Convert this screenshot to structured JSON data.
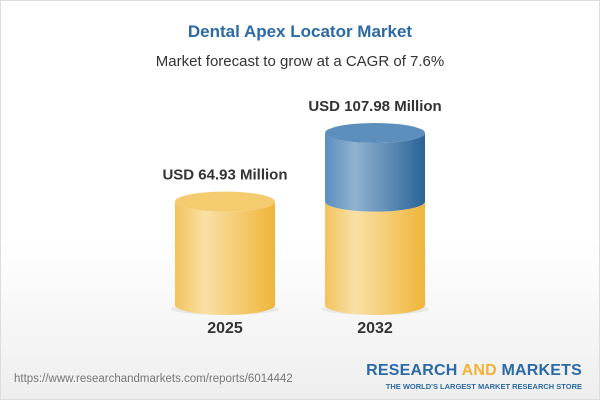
{
  "header": {
    "title": "Dental Apex Locator Market",
    "subtitle": "Market forecast to grow at a CAGR of 7.6%"
  },
  "chart_data": {
    "type": "bar",
    "style": "3d-cylinder",
    "categories": [
      "2025",
      "2032"
    ],
    "values": [
      64.93,
      107.98
    ],
    "data_labels": [
      "USD 64.93 Million",
      "USD 107.98 Million"
    ],
    "unit": "USD Million",
    "colors": {
      "base": "#f2c45a",
      "growth": "#3f7cb0"
    },
    "grid": false
  },
  "footer": {
    "url": "https://www.researchandmarkets.com/reports/6014442",
    "logo_part1": "RESEARCH ",
    "logo_part2": "AND",
    "logo_part3": " MARKETS",
    "tagline": "THE WORLD'S LARGEST MARKET RESEARCH STORE"
  }
}
